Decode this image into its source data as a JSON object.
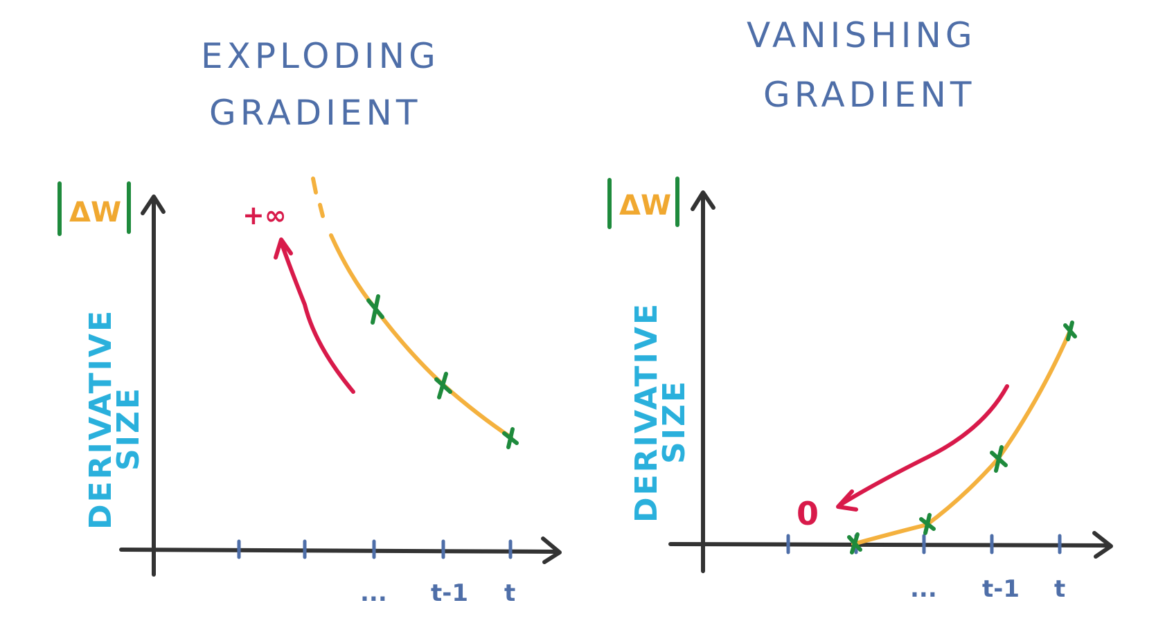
{
  "left": {
    "title_line1": "EXPLODING",
    "title_line2": "GRADIENT",
    "y_label_top": "|ΔW|",
    "y_label_line1": "DERIVATIVE",
    "y_label_line2": "SIZE",
    "limit_label": "+∞",
    "x_ticks": [
      "...",
      "t-1",
      "t"
    ]
  },
  "right": {
    "title_line1": "VANISHING",
    "title_line2": "GRADIENT",
    "y_label_top": "|ΔW|",
    "y_label_line1": "DERIVATIVE",
    "y_label_line2": "SIZE",
    "limit_label": "0",
    "x_ticks": [
      "...",
      "t-1",
      "t"
    ]
  },
  "colors": {
    "title": "#4e6ea8",
    "axis": "#333333",
    "curve": "#f4b13e",
    "marker": "#1e8a3c",
    "arrow": "#d81a4a",
    "label": "#2ab0dc"
  }
}
